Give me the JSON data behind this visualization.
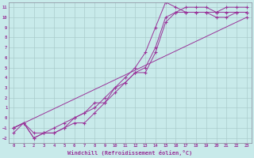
{
  "title": "",
  "xlabel": "Windchill (Refroidissement éolien,°C)",
  "ylabel": "",
  "xlim": [
    -0.5,
    23.5
  ],
  "ylim": [
    -2.5,
    11.5
  ],
  "xticks": [
    0,
    1,
    2,
    3,
    4,
    5,
    6,
    7,
    8,
    9,
    10,
    11,
    12,
    13,
    14,
    15,
    16,
    17,
    18,
    19,
    20,
    21,
    22,
    23
  ],
  "yticks": [
    -2,
    -1,
    0,
    1,
    2,
    3,
    4,
    5,
    6,
    7,
    8,
    9,
    10,
    11
  ],
  "background_color": "#c8eaea",
  "line_color": "#993399",
  "grid_color": "#aacccc",
  "lines": [
    {
      "x": [
        0,
        23
      ],
      "y": [
        -1,
        10
      ]
    },
    {
      "x": [
        0,
        1,
        2,
        3,
        4,
        5,
        6,
        7,
        8,
        9,
        10,
        11,
        12,
        13,
        14,
        15,
        16,
        17,
        18,
        19,
        20,
        21,
        22,
        23
      ],
      "y": [
        -1,
        -0.5,
        -2,
        -1.5,
        -1.5,
        -1,
        -0.5,
        -0.5,
        0.5,
        1.5,
        3,
        4,
        5,
        6.5,
        9,
        11.5,
        11,
        10.5,
        10.5,
        10.5,
        10,
        10,
        10.5,
        10.5
      ]
    },
    {
      "x": [
        0,
        1,
        2,
        3,
        4,
        5,
        6,
        7,
        8,
        9,
        10,
        11,
        12,
        13,
        14,
        15,
        16,
        17,
        18,
        19,
        20,
        21,
        22,
        23
      ],
      "y": [
        -1,
        -0.5,
        -2,
        -1.5,
        -1.5,
        -1,
        0,
        0.5,
        1,
        2,
        3,
        3.5,
        4.5,
        5,
        7,
        10,
        10.5,
        11,
        11,
        11,
        10.5,
        11,
        11,
        11
      ]
    },
    {
      "x": [
        0,
        1,
        2,
        3,
        4,
        5,
        6,
        7,
        8,
        9,
        10,
        11,
        12,
        13,
        14,
        15,
        16,
        17,
        18,
        19,
        20,
        21,
        22,
        23
      ],
      "y": [
        -1.5,
        -0.5,
        -1.5,
        -1.5,
        -1,
        -0.5,
        0,
        0.5,
        1.5,
        1.5,
        2.5,
        3.5,
        4.5,
        4.5,
        6.5,
        9.5,
        10.5,
        10.5,
        10.5,
        10.5,
        10.5,
        10.5,
        10.5,
        10.5
      ]
    }
  ]
}
